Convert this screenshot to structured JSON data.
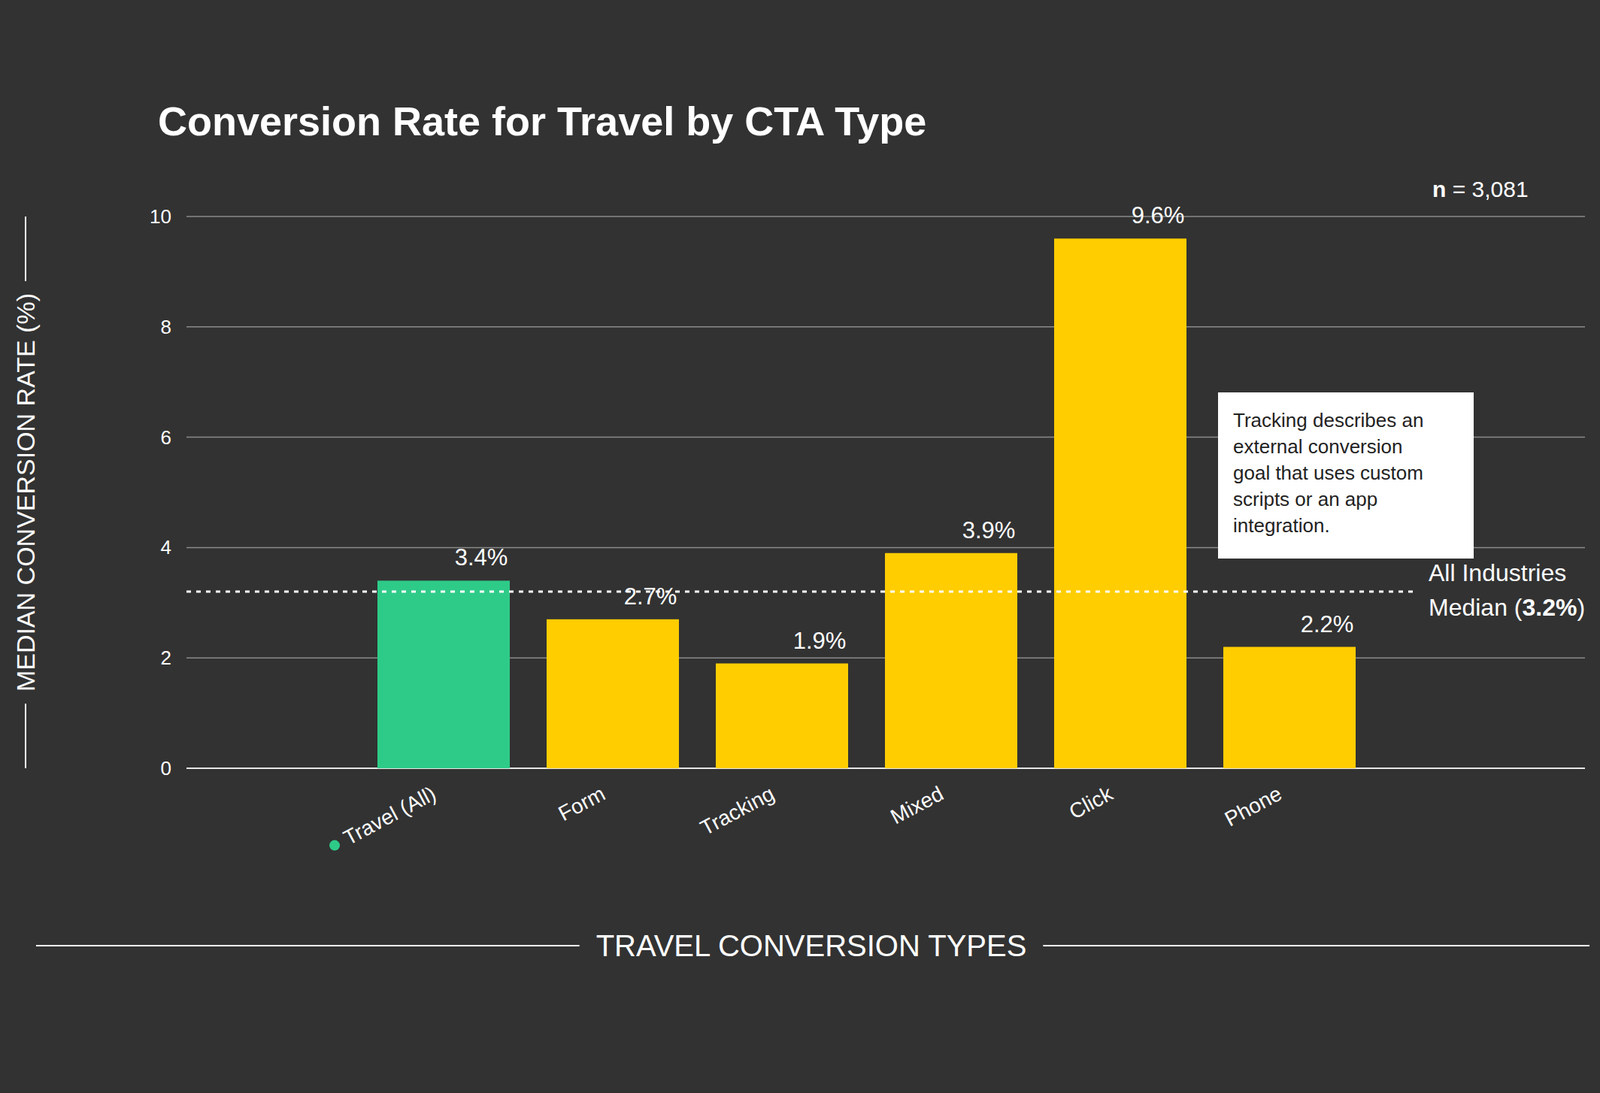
{
  "chart_data": {
    "type": "bar",
    "title": "Conversion Rate for Travel by CTA Type",
    "categories": [
      "Travel (All)",
      "Form",
      "Tracking",
      "Mixed",
      "Click",
      "Phone"
    ],
    "values": [
      3.4,
      2.7,
      1.9,
      3.9,
      9.6,
      2.2
    ],
    "value_labels": [
      "3.4%",
      "2.7%",
      "1.9%",
      "3.9%",
      "9.6%",
      "2.2%"
    ],
    "colors": [
      "#2ecb88",
      "#ffcd00",
      "#ffcd00",
      "#ffcd00",
      "#ffcd00",
      "#ffcd00"
    ],
    "data_labels": true,
    "xlabel": "TRAVEL CONVERSION TYPES",
    "ylabel": "MEDIAN CONVERSION RATE (%)",
    "ylim": [
      0,
      10
    ],
    "yticks": [
      0,
      2,
      4,
      6,
      8,
      10
    ],
    "grid": true,
    "annotations": [
      {
        "text": "n = 3,081"
      },
      {
        "text": "Tracking describes an external conversion goal that uses custom scripts or an app integration."
      }
    ],
    "reference_line": {
      "value": 3.2,
      "label": "All Industries Median (3.2%)",
      "value_label": "3.2%"
    }
  }
}
